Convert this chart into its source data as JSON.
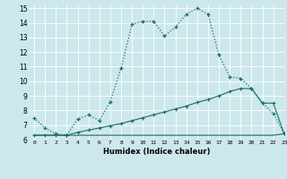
{
  "xlabel": "Humidex (Indice chaleur)",
  "xlim": [
    -0.5,
    23
  ],
  "ylim": [
    6,
    15.2
  ],
  "xticks": [
    0,
    1,
    2,
    3,
    4,
    5,
    6,
    7,
    8,
    9,
    10,
    11,
    12,
    13,
    14,
    15,
    16,
    17,
    18,
    19,
    20,
    21,
    22,
    23
  ],
  "yticks": [
    6,
    7,
    8,
    9,
    10,
    11,
    12,
    13,
    14,
    15
  ],
  "bg_color": "#cce8ec",
  "line_color": "#1a6b6b",
  "curve1_x": [
    0,
    1,
    2,
    3,
    4,
    5,
    6,
    7,
    8,
    9,
    10,
    11,
    12,
    13,
    14,
    15,
    16,
    17,
    18,
    19,
    20,
    21,
    22,
    23
  ],
  "curve1_y": [
    7.5,
    6.8,
    6.4,
    6.3,
    7.4,
    7.7,
    7.3,
    8.6,
    10.9,
    13.9,
    14.1,
    14.1,
    13.1,
    13.7,
    14.6,
    15.0,
    14.6,
    11.8,
    10.3,
    10.2,
    9.5,
    8.5,
    7.8,
    6.4
  ],
  "curve2_x": [
    0,
    1,
    2,
    3,
    4,
    5,
    6,
    7,
    8,
    9,
    10,
    11,
    12,
    13,
    14,
    15,
    16,
    17,
    18,
    19,
    20,
    21,
    22,
    23
  ],
  "curve2_y": [
    6.3,
    6.3,
    6.3,
    6.3,
    6.5,
    6.65,
    6.8,
    6.95,
    7.1,
    7.3,
    7.5,
    7.7,
    7.9,
    8.1,
    8.3,
    8.55,
    8.75,
    9.0,
    9.3,
    9.5,
    9.5,
    8.5,
    8.5,
    6.4
  ],
  "curve3_x": [
    0,
    1,
    2,
    3,
    4,
    5,
    6,
    7,
    8,
    9,
    10,
    11,
    12,
    13,
    14,
    15,
    16,
    17,
    18,
    19,
    20,
    21,
    22,
    23
  ],
  "curve3_y": [
    6.3,
    6.3,
    6.3,
    6.3,
    6.3,
    6.3,
    6.3,
    6.3,
    6.3,
    6.3,
    6.3,
    6.3,
    6.3,
    6.3,
    6.3,
    6.3,
    6.3,
    6.3,
    6.3,
    6.3,
    6.3,
    6.3,
    6.3,
    6.4
  ]
}
